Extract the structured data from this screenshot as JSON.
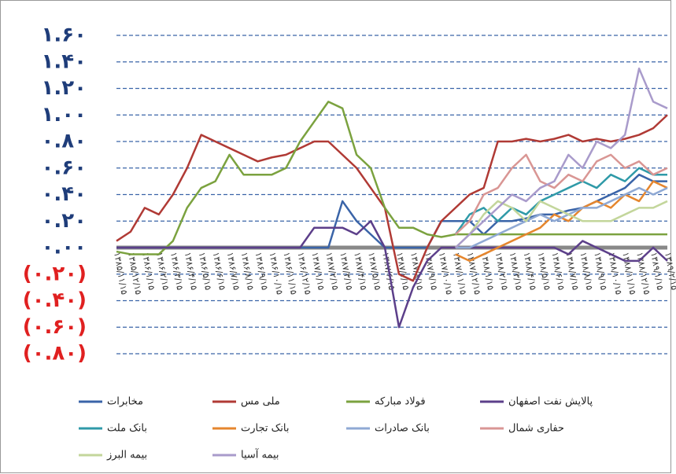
{
  "chart_data": {
    "type": "line",
    "categories": [
      "۱۳۸۵/۱۱/۱۵",
      "۱۳۸۵/۱۲/۱۵",
      "۱۳۸۶/۱/۱۵",
      "۱۳۸۶/۲/۱۵",
      "۱۳۸۶/۳/۱۵",
      "۱۳۸۶/۴/۱۵",
      "۱۳۸۶/۵/۱۵",
      "۱۳۸۶/۶/۱۵",
      "۱۳۸۶/۷/۱۵",
      "۱۳۸۶/۸/۱۵",
      "۱۳۸۶/۹/۱۵",
      "۱۳۸۶/۱۰/۱۵",
      "۱۳۸۶/۱۱/۱۵",
      "۱۳۸۶/۱۲/۱۵",
      "۱۳۸۷/۱/۱۵",
      "۱۳۸۷/۲/۱۵",
      "۱۳۸۷/۳/۱۵",
      "۱۳۸۷/۴/۱۵",
      "۱۳۸۷/۵/۱۵",
      "۱۳۸۷/۶/۱۵",
      "۱۳۸۷/۷/۱۵",
      "۱۳۸۷/۸/۱۵",
      "۱۳۸۷/۹/۱۵",
      "۱۳۸۷/۱۰/۱۵",
      "۱۳۸۷/۱۱/۱۵",
      "۱۳۸۷/۱۲/۱۵",
      "۱۳۸۸/۱/۱۵",
      "۱۳۸۸/۲/۱۵",
      "۱۳۸۸/۳/۱۵",
      "۱۳۸۸/۴/۱۵",
      "۱۳۸۸/۵/۱۵",
      "۱۳۸۸/۶/۱۵",
      "۱۳۸۸/۷/۱۵",
      "۱۳۸۸/۸/۱۵",
      "۱۳۸۸/۹/۱۵",
      "۱۳۸۸/۱۰/۱۵",
      "۱۳۸۸/۱۱/۱۵",
      "۱۳۸۸/۱۲/۱۵",
      "۱۳۸۹/۱/۱۵",
      "۱۳۸۹/۲/۱۵"
    ],
    "series": [
      {
        "name": "مخابرات",
        "color": "#3a64a8",
        "values": [
          0,
          0,
          0,
          0,
          0,
          0,
          0,
          0,
          0,
          0,
          0,
          0,
          0,
          0,
          0,
          0,
          0.35,
          0.2,
          0.1,
          0,
          0,
          0,
          0,
          0.2,
          0.2,
          0.2,
          0.1,
          0.2,
          0.2,
          0.22,
          0.25,
          0.25,
          0.28,
          0.3,
          0.35,
          0.4,
          0.45,
          0.55,
          0.5,
          0.5
        ]
      },
      {
        "name": "ملی مس",
        "color": "#b03a35",
        "values": [
          0.05,
          0.12,
          0.3,
          0.25,
          0.4,
          0.6,
          0.85,
          0.8,
          0.75,
          0.7,
          0.65,
          0.68,
          0.7,
          0.75,
          0.8,
          0.8,
          0.7,
          0.6,
          0.45,
          0.3,
          -0.2,
          -0.25,
          0,
          0.2,
          0.3,
          0.4,
          0.45,
          0.8,
          0.8,
          0.82,
          0.8,
          0.82,
          0.85,
          0.8,
          0.82,
          0.8,
          0.82,
          0.85,
          0.9,
          1.0
        ]
      },
      {
        "name": "فولاد مبارکه",
        "color": "#7ba23f",
        "values": [
          -0.03,
          -0.05,
          -0.05,
          -0.05,
          0.05,
          0.3,
          0.45,
          0.5,
          0.7,
          0.55,
          0.55,
          0.55,
          0.6,
          0.8,
          0.95,
          1.1,
          1.05,
          0.7,
          0.6,
          0.3,
          0.15,
          0.15,
          0.1,
          0.08,
          0.1,
          0.1,
          0.1,
          0.1,
          0.1,
          0.1,
          0.1,
          0.1,
          0.1,
          0.1,
          0.1,
          0.1,
          0.1,
          0.1,
          0.1,
          0.1
        ]
      },
      {
        "name": "پالایش نفت اصفهان",
        "color": "#5c3f8a",
        "values": [
          0,
          0,
          0,
          0,
          0,
          0,
          0,
          0,
          0,
          0,
          0,
          0,
          0,
          0,
          0.15,
          0.15,
          0.15,
          0.1,
          0.2,
          0,
          -0.6,
          -0.3,
          -0.1,
          0,
          0,
          0,
          0,
          0,
          0,
          0,
          0,
          0,
          -0.05,
          0.05,
          0,
          -0.05,
          -0.1,
          -0.1,
          0,
          -0.1
        ]
      },
      {
        "name": "بانک ملت",
        "color": "#2f9aa8",
        "values": [
          null,
          null,
          null,
          null,
          null,
          null,
          null,
          null,
          null,
          null,
          null,
          null,
          null,
          null,
          null,
          null,
          null,
          null,
          null,
          null,
          null,
          null,
          null,
          null,
          0.1,
          0.25,
          0.3,
          0.2,
          0.3,
          0.25,
          0.35,
          0.4,
          0.45,
          0.5,
          0.45,
          0.55,
          0.5,
          0.6,
          0.55,
          0.55
        ]
      },
      {
        "name": "بانک تجارت",
        "color": "#e5862e",
        "values": [
          null,
          null,
          null,
          null,
          null,
          null,
          null,
          null,
          null,
          null,
          null,
          null,
          null,
          null,
          null,
          null,
          null,
          null,
          null,
          null,
          null,
          null,
          null,
          null,
          -0.05,
          -0.1,
          -0.05,
          0,
          0.05,
          0.1,
          0.15,
          0.25,
          0.2,
          0.3,
          0.35,
          0.3,
          0.4,
          0.35,
          0.5,
          0.45
        ]
      },
      {
        "name": "بانک صادرات",
        "color": "#8fa9d4",
        "values": [
          null,
          null,
          null,
          null,
          null,
          null,
          null,
          null,
          null,
          null,
          null,
          null,
          null,
          null,
          null,
          null,
          null,
          null,
          null,
          null,
          null,
          null,
          null,
          null,
          0,
          0,
          0.05,
          0.1,
          0.15,
          0.2,
          0.25,
          0.2,
          0.25,
          0.3,
          0.3,
          0.35,
          0.4,
          0.45,
          0.4,
          0.45
        ]
      },
      {
        "name": "حفاری شمال",
        "color": "#d99694",
        "values": [
          null,
          null,
          null,
          null,
          null,
          null,
          null,
          null,
          null,
          null,
          null,
          null,
          null,
          null,
          null,
          null,
          null,
          null,
          null,
          null,
          null,
          null,
          null,
          null,
          0.1,
          0.2,
          0.4,
          0.45,
          0.6,
          0.7,
          0.5,
          0.45,
          0.55,
          0.5,
          0.65,
          0.7,
          0.6,
          0.65,
          0.55,
          0.6
        ]
      },
      {
        "name": "بیمه البرز",
        "color": "#c3d69b",
        "values": [
          null,
          null,
          null,
          null,
          null,
          null,
          null,
          null,
          null,
          null,
          null,
          null,
          null,
          null,
          null,
          null,
          null,
          null,
          null,
          null,
          null,
          null,
          null,
          null,
          0,
          0.1,
          0.25,
          0.35,
          0.3,
          0.2,
          0.35,
          0.3,
          0.25,
          0.2,
          0.2,
          0.2,
          0.25,
          0.3,
          0.3,
          0.35
        ]
      },
      {
        "name": "بیمه آسیا",
        "color": "#a99bcb",
        "values": [
          null,
          null,
          null,
          null,
          null,
          null,
          null,
          null,
          null,
          null,
          null,
          null,
          null,
          null,
          null,
          null,
          null,
          null,
          null,
          null,
          null,
          null,
          null,
          null,
          0,
          0.1,
          0.2,
          0.3,
          0.4,
          0.35,
          0.45,
          0.5,
          0.7,
          0.6,
          0.8,
          0.75,
          0.85,
          1.35,
          1.1,
          1.05
        ]
      }
    ],
    "ylim": [
      -0.8,
      1.6
    ],
    "yticks": [
      {
        "value": 1.6,
        "label": "۱.۶۰"
      },
      {
        "value": 1.4,
        "label": "۱.۴۰"
      },
      {
        "value": 1.2,
        "label": "۱.۲۰"
      },
      {
        "value": 1,
        "label": "۱.۰۰"
      },
      {
        "value": 0.8,
        "label": "۰.۸۰"
      },
      {
        "value": 0.6,
        "label": "۰.۶۰"
      },
      {
        "value": 0.4,
        "label": "۰.۴۰"
      },
      {
        "value": 0.2,
        "label": "۰.۲۰"
      },
      {
        "value": 0,
        "label": "۰.۰۰"
      },
      {
        "value": -0.2,
        "label": "(۰.۲۰)"
      },
      {
        "value": -0.4,
        "label": "(۰.۴۰)"
      },
      {
        "value": -0.6,
        "label": "(۰.۶۰)"
      },
      {
        "value": -0.8,
        "label": "(۰.۸۰)"
      }
    ],
    "grid": true,
    "tick_color": "#1f3d7a",
    "negative_tick_color": "#e02020",
    "legend": "bottom"
  }
}
